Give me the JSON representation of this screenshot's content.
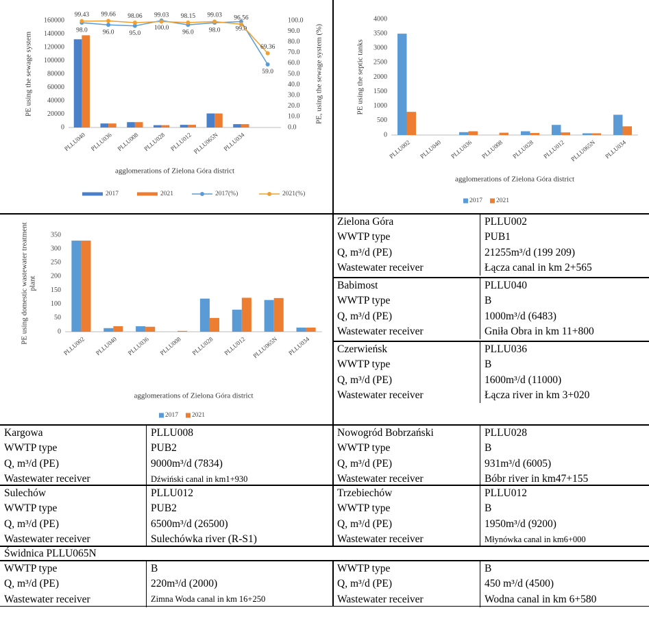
{
  "chart_data": [
    {
      "type": "bar",
      "ylabel": [
        "PE using the sewage system"
      ],
      "y2label": "PE, using the sewage system (%)",
      "xlabel": "agglomerations of Zielona Góra district",
      "categories": [
        "PLLU040",
        "PLLU036",
        "PLLU008",
        "PLLU028",
        "PLLU012",
        "PLLU065N",
        "PLLU034",
        null
      ],
      "series": [
        {
          "name": "2017",
          "type": "bar",
          "color": "#4a7fc9",
          "values": [
            132000,
            6000,
            8000,
            3500,
            4000,
            21000,
            5000,
            null
          ]
        },
        {
          "name": "2021",
          "type": "bar",
          "color": "#ed7d31",
          "values": [
            138000,
            6000,
            8000,
            3500,
            4000,
            21000,
            5000,
            null
          ]
        },
        {
          "name": "2017(%)",
          "type": "line",
          "axis": "y2",
          "color": "#5b9bd5",
          "values": [
            98,
            96,
            95,
            100,
            96,
            98,
            99,
            59
          ],
          "value_labels": [
            "98.0",
            "96.0",
            "95.0",
            "100.0",
            "96.0",
            "98.0",
            "99.0",
            "59.0"
          ]
        },
        {
          "name": "2021(%)",
          "type": "line",
          "axis": "y2",
          "color": "#f0a030",
          "values": [
            99.43,
            99.66,
            98.06,
            99.03,
            98.15,
            99.03,
            96.56,
            69.36
          ]
        }
      ],
      "ylim": [
        0,
        160000
      ],
      "yticks": [
        0,
        20000,
        40000,
        60000,
        80000,
        100000,
        120000,
        140000,
        160000
      ],
      "y2lim": [
        0,
        100
      ],
      "y2ticks": [
        {
          "value": 0,
          "label": "0.0"
        },
        {
          "value": 10,
          "label": "10.0"
        },
        {
          "value": 20,
          "label": "20.0"
        },
        {
          "value": 30,
          "label": "30.0"
        },
        {
          "value": 40,
          "label": "40.0"
        },
        {
          "value": 50,
          "label": "50.0"
        },
        {
          "value": 60,
          "label": "60.0"
        },
        {
          "value": 70,
          "label": "70.0"
        },
        {
          "value": 80,
          "label": "80.0"
        },
        {
          "value": 90,
          "label": "90.0"
        },
        {
          "value": 100,
          "label": "100.0"
        }
      ],
      "grid": false
    },
    {
      "type": "bar",
      "ylabel": [
        "PE using the septic tanks"
      ],
      "xlabel": "agglomerations of Zielona Góra district",
      "categories": [
        "PLLU002",
        "PLLU040",
        "PLLU036",
        "PLLU008",
        "PLLU028",
        "PLLU012",
        "PLLU065N",
        "PLLU034"
      ],
      "series": [
        {
          "name": "2017",
          "type": "bar",
          "color": "#5b9bd5",
          "values": [
            3500,
            0,
            100,
            0,
            130,
            350,
            60,
            700
          ]
        },
        {
          "name": "2021",
          "type": "bar",
          "color": "#ed7d31",
          "values": [
            800,
            0,
            130,
            80,
            70,
            90,
            60,
            300
          ]
        }
      ],
      "ylim": [
        0,
        4000
      ],
      "yticks": [
        0,
        500,
        1000,
        1500,
        2000,
        2500,
        3000,
        3500,
        4000
      ],
      "grid": false
    },
    {
      "type": "bar",
      "ylabel": [
        "PE using domestic wastewater treatment",
        "plant"
      ],
      "xlabel": "agglomerations of Zielona Góra district",
      "categories": [
        "PLLU002",
        "PLLU040",
        "PLLU036",
        "PLLU008",
        "PLLU028",
        "PLLU012",
        "PLLU065N",
        "PLLU034"
      ],
      "series": [
        {
          "name": "2017",
          "type": "bar",
          "color": "#5b9bd5",
          "values": [
            330,
            13,
            20,
            0,
            120,
            80,
            115,
            15
          ]
        },
        {
          "name": "2021",
          "type": "bar",
          "color": "#ed7d31",
          "values": [
            330,
            20,
            18,
            3,
            50,
            123,
            122,
            15
          ]
        }
      ],
      "ylim": [
        0,
        350
      ],
      "yticks": [
        0,
        50,
        100,
        150,
        200,
        250,
        300,
        350
      ],
      "grid": false
    }
  ],
  "table": {
    "blocks": [
      {
        "rows": [
          [
            "Zielona Góra",
            "PLLU002"
          ],
          [
            "WWTP type",
            "PUB1"
          ],
          [
            "Q, m³/d (PE)",
            "21255m³/d (199 209)"
          ],
          [
            "Wastewater receiver",
            "Łącza canal in km 2+565"
          ]
        ]
      },
      {
        "rows": [
          [
            "Babimost",
            "PLLU040"
          ],
          [
            "WWTP type",
            "B"
          ],
          [
            "Q, m³/d (PE)",
            "1000m³/d (6483)"
          ],
          [
            "Wastewater receiver",
            "Gniła Obra in km 11+800"
          ]
        ]
      },
      {
        "rows": [
          [
            "Czerwieńsk",
            "PLLU036"
          ],
          [
            "WWTP type",
            "B"
          ],
          [
            "Q, m³/d (PE)",
            "1600m³/d (11000)"
          ],
          [
            "Wastewater receiver",
            "Łącza river in km 3+020"
          ]
        ]
      },
      {
        "rows": [
          [
            "Kargowa",
            "PLLU008"
          ],
          [
            "WWTP type",
            "PUB2"
          ],
          [
            "Q, m³/d (PE)",
            "9000m³/d (7834)"
          ],
          [
            "Wastewater receiver",
            "Dźwiński canal in km1+930"
          ]
        ]
      },
      {
        "rows": [
          [
            "Nowogród Bobrzański",
            "PLLU028"
          ],
          [
            "WWTP type",
            "B"
          ],
          [
            "Q, m³/d (PE)",
            "931m³/d (6005)"
          ],
          [
            "Wastewater receiver",
            "Bóbr river in km47+155"
          ]
        ]
      },
      {
        "rows": [
          [
            "Sulechów",
            "PLLU012"
          ],
          [
            "WWTP type",
            "PUB2"
          ],
          [
            "Q, m³/d (PE)",
            "6500m³/d (26500)"
          ],
          [
            "Wastewater receiver",
            "Sulechówka river (R-S1)"
          ]
        ]
      },
      {
        "rows": [
          [
            "Trzebiechów",
            "PLLU012"
          ],
          [
            "WWTP type",
            "B"
          ],
          [
            "Q, m³/d (PE)",
            "1950m³/d (9200)"
          ],
          [
            "Wastewater receiver",
            "Młynówka canal in km6+000"
          ]
        ]
      },
      {
        "rows": [
          [
            "WWTP type",
            "B"
          ],
          [
            "Q, m³/d (PE)",
            "220m³/d (2000)"
          ],
          [
            "Wastewater receiver",
            "Zimna Woda canal in km 16+250"
          ]
        ]
      },
      {
        "rows": [
          [
            "WWTP type",
            "B"
          ],
          [
            "Q, m³/d (PE)",
            "450 m³/d (4500)"
          ],
          [
            "Wastewater receiver",
            "Wodna canal in km 6+580"
          ]
        ]
      }
    ],
    "banner": "Świdnica PLLU065N"
  }
}
